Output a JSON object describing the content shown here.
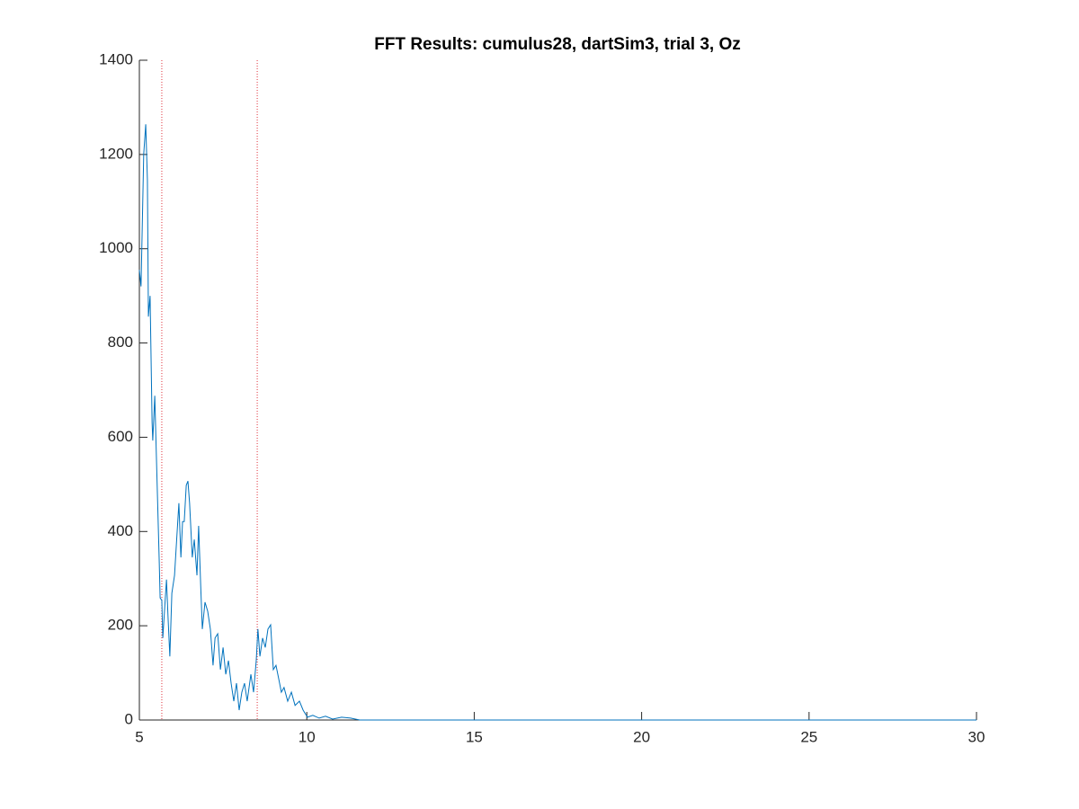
{
  "chart_data": {
    "type": "line",
    "title": "FFT Results: cumulus28, dartSim3, trial 3, Oz",
    "x": [
      5.0,
      5.05,
      5.13,
      5.19,
      5.24,
      5.27,
      5.32,
      5.38,
      5.4,
      5.46,
      5.51,
      5.59,
      5.62,
      5.67,
      5.7,
      5.75,
      5.81,
      5.86,
      5.91,
      5.97,
      6.05,
      6.13,
      6.18,
      6.24,
      6.29,
      6.34,
      6.4,
      6.45,
      6.5,
      6.58,
      6.64,
      6.72,
      6.77,
      6.83,
      6.88,
      6.96,
      7.04,
      7.12,
      7.2,
      7.26,
      7.34,
      7.42,
      7.5,
      7.58,
      7.66,
      7.74,
      7.82,
      7.9,
      7.98,
      8.06,
      8.14,
      8.22,
      8.33,
      8.41,
      8.49,
      8.54,
      8.6,
      8.68,
      8.76,
      8.84,
      8.92,
      9.0,
      9.08,
      9.16,
      9.24,
      9.32,
      9.43,
      9.54,
      9.65,
      9.78,
      9.89,
      10.02,
      10.18,
      10.37,
      10.56,
      10.77,
      11.04,
      11.31,
      11.58,
      15,
      20,
      25,
      30
    ],
    "series": [
      {
        "color": "#0072bd",
        "values": [
          955,
          920,
          1201,
          1264,
          1146,
          856,
          900,
          631,
          593,
          688,
          555,
          345,
          259,
          254,
          174,
          231,
          298,
          212,
          135,
          269,
          307,
          402,
          460,
          345,
          421,
          421,
          498,
          507,
          460,
          345,
          383,
          307,
          412,
          288,
          193,
          250,
          231,
          193,
          116,
          174,
          183,
          107,
          154,
          97,
          126,
          78,
          40,
          78,
          21,
          59,
          78,
          40,
          97,
          59,
          126,
          193,
          135,
          174,
          154,
          193,
          202,
          107,
          116,
          88,
          59,
          69,
          40,
          59,
          31,
          40,
          21,
          6,
          10,
          4,
          8,
          2,
          6,
          4,
          0,
          0,
          0,
          0,
          0
        ]
      }
    ],
    "xlim": [
      5,
      30
    ],
    "ylim": [
      0,
      1400
    ],
    "xticks": [
      5,
      10,
      15,
      20,
      25,
      30
    ],
    "yticks": [
      0,
      200,
      400,
      600,
      800,
      1000,
      1200,
      1400
    ],
    "reference_lines": {
      "x": [
        5.67,
        8.52
      ],
      "color": "#e0303a"
    }
  }
}
